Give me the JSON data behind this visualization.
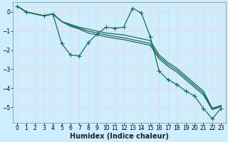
{
  "xlabel": "Humidex (Indice chaleur)",
  "background_color": "#cceeff",
  "grid_color": "#ffcccc",
  "line_color": "#1a6b5a",
  "xlim": [
    -0.5,
    23.5
  ],
  "ylim": [
    -5.8,
    0.5
  ],
  "x_ticks": [
    0,
    1,
    2,
    3,
    4,
    5,
    6,
    7,
    8,
    9,
    10,
    11,
    12,
    13,
    14,
    15,
    16,
    17,
    18,
    19,
    20,
    21,
    22,
    23
  ],
  "y_ticks": [
    0,
    -1,
    -2,
    -3,
    -4,
    -5
  ],
  "series": [
    {
      "x": [
        0,
        1,
        3,
        4,
        5,
        6,
        7,
        8,
        9,
        10,
        11,
        12,
        13,
        14,
        15,
        16,
        17,
        18,
        19,
        20,
        21,
        22,
        23
      ],
      "y": [
        0.3,
        0.0,
        -0.2,
        -0.1,
        -1.65,
        -2.25,
        -2.3,
        -1.6,
        -1.15,
        -0.8,
        -0.85,
        -0.8,
        0.2,
        -0.05,
        -1.3,
        -3.1,
        -3.55,
        -3.8,
        -4.15,
        -4.4,
        -5.05,
        -5.6,
        -5.05
      ],
      "marker": true,
      "markersize": 4
    },
    {
      "x": [
        0,
        1,
        3,
        4,
        5,
        6,
        7,
        8,
        9,
        10,
        11,
        12,
        13,
        14,
        15,
        16,
        17,
        18,
        19,
        20,
        21,
        22,
        23
      ],
      "y": [
        0.3,
        0.0,
        -0.2,
        -0.1,
        -0.5,
        -0.65,
        -0.8,
        -0.9,
        -1.0,
        -1.1,
        -1.15,
        -1.2,
        -1.3,
        -1.4,
        -1.5,
        -2.25,
        -2.65,
        -2.95,
        -3.35,
        -3.75,
        -4.15,
        -5.05,
        -4.9
      ],
      "marker": false,
      "markersize": 2
    },
    {
      "x": [
        0,
        1,
        3,
        4,
        5,
        6,
        7,
        8,
        9,
        10,
        11,
        12,
        13,
        14,
        15,
        16,
        17,
        18,
        19,
        20,
        21,
        22,
        23
      ],
      "y": [
        0.3,
        0.0,
        -0.2,
        -0.1,
        -0.5,
        -0.7,
        -0.85,
        -1.0,
        -1.1,
        -1.2,
        -1.28,
        -1.35,
        -1.45,
        -1.55,
        -1.65,
        -2.35,
        -2.75,
        -3.05,
        -3.45,
        -3.85,
        -4.25,
        -5.08,
        -4.92
      ],
      "marker": false,
      "markersize": 2
    },
    {
      "x": [
        0,
        1,
        3,
        4,
        5,
        6,
        7,
        8,
        9,
        10,
        11,
        12,
        13,
        14,
        15,
        16,
        17,
        18,
        19,
        20,
        21,
        22,
        23
      ],
      "y": [
        0.3,
        0.0,
        -0.2,
        -0.1,
        -0.5,
        -0.75,
        -0.9,
        -1.1,
        -1.2,
        -1.3,
        -1.38,
        -1.45,
        -1.55,
        -1.65,
        -1.75,
        -2.45,
        -2.85,
        -3.15,
        -3.55,
        -3.95,
        -4.35,
        -5.12,
        -4.96
      ],
      "marker": false,
      "markersize": 2
    }
  ],
  "linewidth": 0.9,
  "fontsize_label": 7,
  "fontsize_tick": 5.5
}
